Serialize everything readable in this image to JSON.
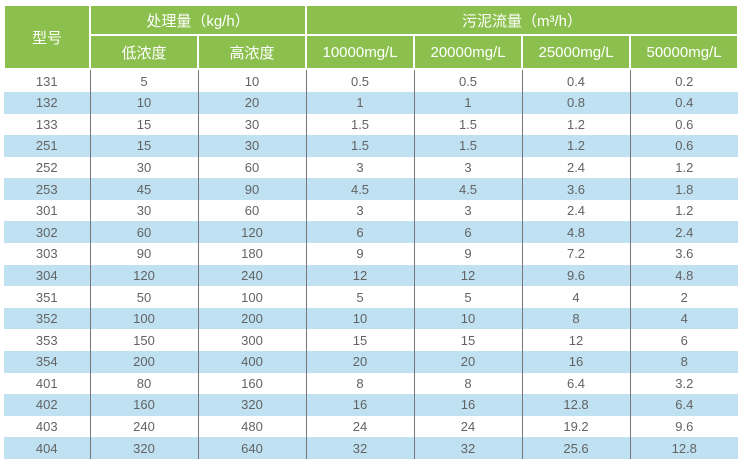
{
  "colors": {
    "header_bg": "#8cc04e",
    "header_text": "#ffffff",
    "row_alt_bg": "#bfe1f2",
    "row_bg": "#ffffff",
    "body_text": "#636363",
    "grid_line": "#767676"
  },
  "chart_data": {
    "type": "table",
    "title": "",
    "header": {
      "model": "型号",
      "groups": [
        {
          "label": "处理量（kg/h）",
          "span": 2
        },
        {
          "label": "污泥流量（m³/h）",
          "span": 4
        }
      ],
      "sub_columns": [
        "低浓度",
        "高浓度",
        "10000mg/L",
        "20000mg/L",
        "25000mg/L",
        "50000mg/L"
      ]
    },
    "rows": [
      [
        "131",
        "5",
        "10",
        "0.5",
        "0.5",
        "0.4",
        "0.2"
      ],
      [
        "132",
        "10",
        "20",
        "1",
        "1",
        "0.8",
        "0.4"
      ],
      [
        "133",
        "15",
        "30",
        "1.5",
        "1.5",
        "1.2",
        "0.6"
      ],
      [
        "251",
        "15",
        "30",
        "1.5",
        "1.5",
        "1.2",
        "0.6"
      ],
      [
        "252",
        "30",
        "60",
        "3",
        "3",
        "2.4",
        "1.2"
      ],
      [
        "253",
        "45",
        "90",
        "4.5",
        "4.5",
        "3.6",
        "1.8"
      ],
      [
        "301",
        "30",
        "60",
        "3",
        "3",
        "2.4",
        "1.2"
      ],
      [
        "302",
        "60",
        "120",
        "6",
        "6",
        "4.8",
        "2.4"
      ],
      [
        "303",
        "90",
        "180",
        "9",
        "9",
        "7.2",
        "3.6"
      ],
      [
        "304",
        "120",
        "240",
        "12",
        "12",
        "9.6",
        "4.8"
      ],
      [
        "351",
        "50",
        "100",
        "5",
        "5",
        "4",
        "2"
      ],
      [
        "352",
        "100",
        "200",
        "10",
        "10",
        "8",
        "4"
      ],
      [
        "353",
        "150",
        "300",
        "15",
        "15",
        "12",
        "6"
      ],
      [
        "354",
        "200",
        "400",
        "20",
        "20",
        "16",
        "8"
      ],
      [
        "401",
        "80",
        "160",
        "8",
        "8",
        "6.4",
        "3.2"
      ],
      [
        "402",
        "160",
        "320",
        "16",
        "16",
        "12.8",
        "6.4"
      ],
      [
        "403",
        "240",
        "480",
        "24",
        "24",
        "19.2",
        "9.6"
      ],
      [
        "404",
        "320",
        "640",
        "32",
        "32",
        "25.6",
        "12.8"
      ]
    ]
  }
}
